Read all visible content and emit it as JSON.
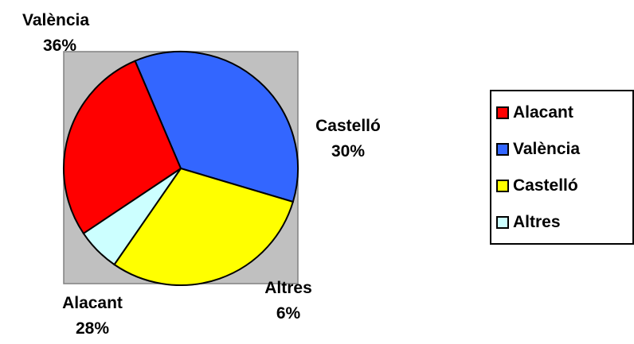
{
  "chart_data": {
    "type": "pie",
    "categories": [
      "Alacant",
      "València",
      "Castelló",
      "Altres"
    ],
    "values": [
      28,
      36,
      30,
      6
    ],
    "value_labels": [
      "28%",
      "36%",
      "30%",
      "6%"
    ],
    "colors": [
      "#ff0000",
      "#3366ff",
      "#ffff00",
      "#ccffff"
    ],
    "plot_background": "#c0c0c0",
    "legend": {
      "placement": "right",
      "entries": [
        "Alacant",
        "València",
        "Castelló",
        "Altres"
      ]
    }
  }
}
